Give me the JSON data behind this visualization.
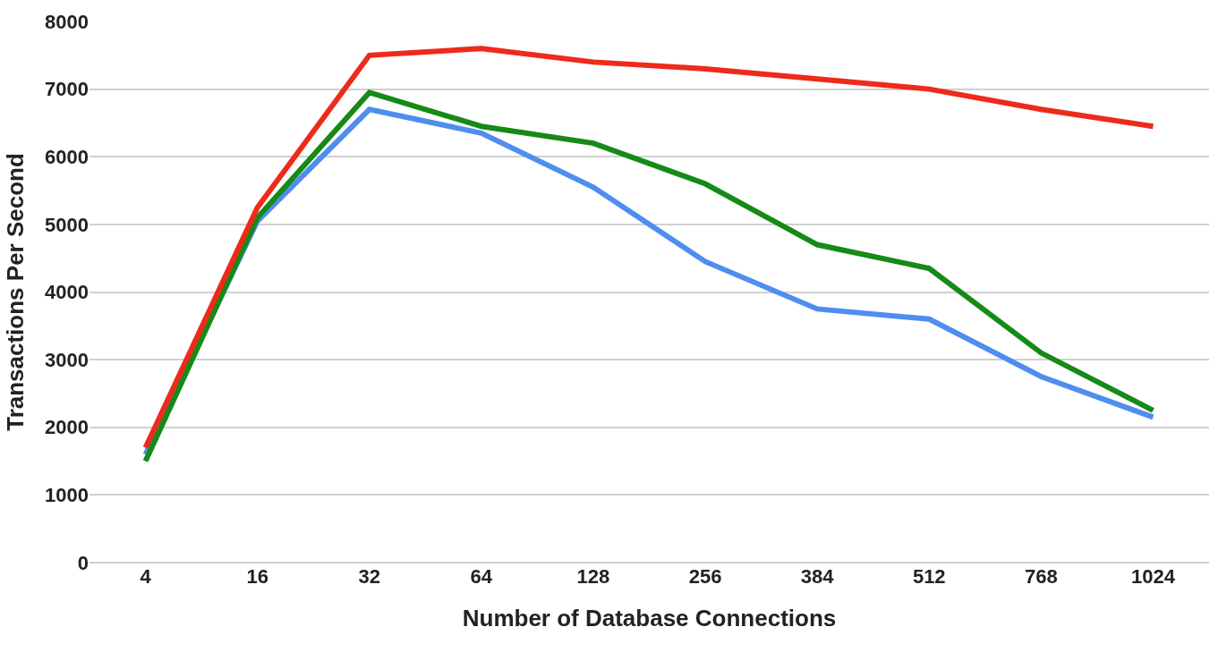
{
  "chart_data": {
    "type": "line",
    "xlabel": "Number of Database Connections",
    "ylabel": "Transactions Per Second",
    "categories": [
      "4",
      "16",
      "32",
      "64",
      "128",
      "256",
      "384",
      "512",
      "768",
      "1024"
    ],
    "series": [
      {
        "color": "#4f8ef0",
        "values": [
          1600,
          5050,
          6700,
          6350,
          5550,
          4450,
          3750,
          3600,
          2750,
          2150
        ]
      },
      {
        "color": "#168a16",
        "values": [
          1500,
          5100,
          6950,
          6450,
          6200,
          5600,
          4700,
          4350,
          3100,
          2250
        ]
      },
      {
        "color": "#ee2a1b",
        "values": [
          1700,
          5250,
          7500,
          7600,
          7400,
          7300,
          7150,
          7000,
          6700,
          6450
        ]
      }
    ],
    "ylim": [
      0,
      8000
    ],
    "yticks": [
      0,
      1000,
      2000,
      3000,
      4000,
      5000,
      6000,
      7000,
      8000
    ],
    "grid": "y",
    "marker": "none",
    "line_style": "solid"
  }
}
